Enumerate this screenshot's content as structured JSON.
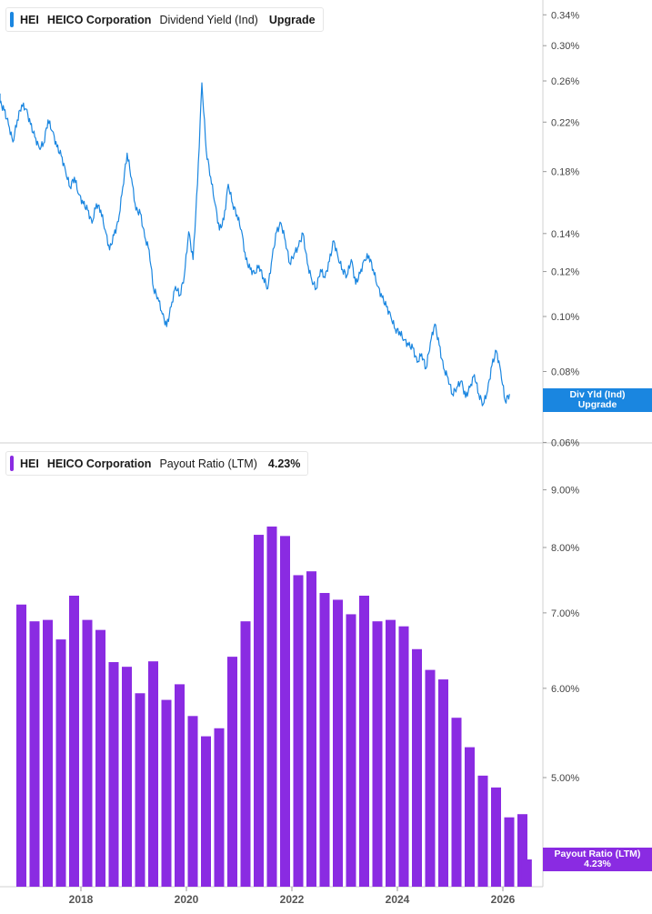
{
  "top_legend": {
    "ticker": "HEI",
    "company": "HEICO Corporation",
    "metric": "Dividend Yield (Ind)",
    "value": "Upgrade",
    "color": "#1a86e0"
  },
  "bottom_legend": {
    "ticker": "HEI",
    "company": "HEICO Corporation",
    "metric": "Payout Ratio (LTM)",
    "value": "4.23%",
    "color": "#8a2be2"
  },
  "top_flag": {
    "line1": "Div Yld (Ind)",
    "line2": "Upgrade",
    "color": "#1a86e0"
  },
  "bottom_flag": {
    "line1": "Payout Ratio (LTM)",
    "line2": "4.23%",
    "color": "#8a2be2"
  },
  "chart_data": [
    {
      "type": "line",
      "series": [
        {
          "name": "Dividend Yield (Ind)"
        }
      ],
      "yscale": "log",
      "y_ticks": [
        "0.34%",
        "0.30%",
        "0.26%",
        "0.22%",
        "0.18%",
        "0.14%",
        "0.12%",
        "0.10%",
        "0.08%",
        "0.06%"
      ],
      "y_tick_values": [
        0.34,
        0.3,
        0.26,
        0.22,
        0.18,
        0.14,
        0.12,
        0.1,
        0.08,
        0.06
      ],
      "points": [
        [
          "2016-08",
          0.247
        ],
        [
          "2016-09",
          0.238
        ],
        [
          "2016-10",
          0.231
        ],
        [
          "2016-11",
          0.218
        ],
        [
          "2016-12",
          0.203
        ],
        [
          "2017-01",
          0.222
        ],
        [
          "2017-02",
          0.236
        ],
        [
          "2017-03",
          0.232
        ],
        [
          "2017-04",
          0.218
        ],
        [
          "2017-05",
          0.207
        ],
        [
          "2017-06",
          0.198
        ],
        [
          "2017-07",
          0.202
        ],
        [
          "2017-08",
          0.222
        ],
        [
          "2017-09",
          0.212
        ],
        [
          "2017-10",
          0.199
        ],
        [
          "2017-11",
          0.192
        ],
        [
          "2017-12",
          0.18
        ],
        [
          "2018-01",
          0.169
        ],
        [
          "2018-02",
          0.176
        ],
        [
          "2018-03",
          0.164
        ],
        [
          "2018-04",
          0.158
        ],
        [
          "2018-05",
          0.154
        ],
        [
          "2018-06",
          0.146
        ],
        [
          "2018-07",
          0.158
        ],
        [
          "2018-08",
          0.154
        ],
        [
          "2018-09",
          0.142
        ],
        [
          "2018-10",
          0.131
        ],
        [
          "2018-11",
          0.139
        ],
        [
          "2018-12",
          0.147
        ],
        [
          "2019-01",
          0.169
        ],
        [
          "2019-02",
          0.194
        ],
        [
          "2019-03",
          0.175
        ],
        [
          "2019-04",
          0.154
        ],
        [
          "2019-05",
          0.152
        ],
        [
          "2019-06",
          0.138
        ],
        [
          "2019-07",
          0.131
        ],
        [
          "2019-08",
          0.112
        ],
        [
          "2019-09",
          0.108
        ],
        [
          "2019-10",
          0.101
        ],
        [
          "2019-11",
          0.096
        ],
        [
          "2019-12",
          0.104
        ],
        [
          "2020-01",
          0.113
        ],
        [
          "2020-02",
          0.109
        ],
        [
          "2020-03",
          0.118
        ],
        [
          "2020-04",
          0.141
        ],
        [
          "2020-05",
          0.126
        ],
        [
          "2020-06",
          0.171
        ],
        [
          "2020-07",
          0.258
        ],
        [
          "2020-08",
          0.196
        ],
        [
          "2020-09",
          0.176
        ],
        [
          "2020-10",
          0.158
        ],
        [
          "2020-11",
          0.142
        ],
        [
          "2020-12",
          0.148
        ],
        [
          "2021-01",
          0.171
        ],
        [
          "2021-02",
          0.158
        ],
        [
          "2021-03",
          0.151
        ],
        [
          "2021-04",
          0.142
        ],
        [
          "2021-05",
          0.126
        ],
        [
          "2021-06",
          0.121
        ],
        [
          "2021-07",
          0.119
        ],
        [
          "2021-08",
          0.123
        ],
        [
          "2021-09",
          0.117
        ],
        [
          "2021-10",
          0.112
        ],
        [
          "2021-11",
          0.127
        ],
        [
          "2021-12",
          0.141
        ],
        [
          "2022-01",
          0.146
        ],
        [
          "2022-02",
          0.136
        ],
        [
          "2022-03",
          0.124
        ],
        [
          "2022-04",
          0.129
        ],
        [
          "2022-05",
          0.133
        ],
        [
          "2022-06",
          0.14
        ],
        [
          "2022-07",
          0.124
        ],
        [
          "2022-08",
          0.116
        ],
        [
          "2022-09",
          0.112
        ],
        [
          "2022-10",
          0.121
        ],
        [
          "2022-11",
          0.117
        ],
        [
          "2022-12",
          0.125
        ],
        [
          "2023-01",
          0.136
        ],
        [
          "2023-02",
          0.127
        ],
        [
          "2023-03",
          0.121
        ],
        [
          "2023-04",
          0.118
        ],
        [
          "2023-05",
          0.126
        ],
        [
          "2023-06",
          0.114
        ],
        [
          "2023-07",
          0.119
        ],
        [
          "2023-08",
          0.126
        ],
        [
          "2023-09",
          0.128
        ],
        [
          "2023-10",
          0.121
        ],
        [
          "2023-11",
          0.113
        ],
        [
          "2023-12",
          0.108
        ],
        [
          "2024-01",
          0.104
        ],
        [
          "2024-02",
          0.1
        ],
        [
          "2024-03",
          0.095
        ],
        [
          "2024-04",
          0.094
        ],
        [
          "2024-05",
          0.091
        ],
        [
          "2024-06",
          0.089
        ],
        [
          "2024-07",
          0.088
        ],
        [
          "2024-08",
          0.083
        ],
        [
          "2024-09",
          0.086
        ],
        [
          "2024-10",
          0.081
        ],
        [
          "2024-11",
          0.09
        ],
        [
          "2024-12",
          0.097
        ],
        [
          "2025-01",
          0.089
        ],
        [
          "2025-02",
          0.081
        ],
        [
          "2025-03",
          0.078
        ],
        [
          "2025-04",
          0.073
        ],
        [
          "2025-05",
          0.075
        ],
        [
          "2025-06",
          0.077
        ],
        [
          "2025-07",
          0.072
        ],
        [
          "2025-08",
          0.075
        ],
        [
          "2025-09",
          0.079
        ],
        [
          "2025-10",
          0.073
        ],
        [
          "2025-11",
          0.07
        ],
        [
          "2025-12",
          0.074
        ],
        [
          "2026-01",
          0.082
        ],
        [
          "2026-02",
          0.087
        ],
        [
          "2026-03",
          0.08
        ],
        [
          "2026-04",
          0.071
        ],
        [
          "2026-05",
          0.073
        ]
      ]
    },
    {
      "type": "bar",
      "series": [
        {
          "name": "Payout Ratio (LTM)"
        }
      ],
      "yscale": "log",
      "y_ticks": [
        "9.00%",
        "8.00%",
        "7.00%",
        "6.00%",
        "5.00%"
      ],
      "y_tick_values": [
        9.0,
        8.0,
        7.0,
        6.0,
        5.0
      ],
      "bars": [
        [
          "2016-10",
          7.12
        ],
        [
          "2017-01",
          6.88
        ],
        [
          "2017-04",
          6.9
        ],
        [
          "2017-07",
          6.63
        ],
        [
          "2017-10",
          7.25
        ],
        [
          "2018-01",
          6.9
        ],
        [
          "2018-04",
          6.76
        ],
        [
          "2018-07",
          6.33
        ],
        [
          "2018-10",
          6.27
        ],
        [
          "2019-01",
          5.94
        ],
        [
          "2019-04",
          6.34
        ],
        [
          "2019-07",
          5.86
        ],
        [
          "2019-10",
          6.05
        ],
        [
          "2020-01",
          5.67
        ],
        [
          "2020-04",
          5.44
        ],
        [
          "2020-07",
          5.53
        ],
        [
          "2020-10",
          6.4
        ],
        [
          "2021-01",
          6.88
        ],
        [
          "2021-04",
          8.21
        ],
        [
          "2021-07",
          8.35
        ],
        [
          "2021-10",
          8.19
        ],
        [
          "2022-01",
          7.56
        ],
        [
          "2022-04",
          7.62
        ],
        [
          "2022-07",
          7.29
        ],
        [
          "2022-10",
          7.19
        ],
        [
          "2023-01",
          6.98
        ],
        [
          "2023-04",
          7.25
        ],
        [
          "2023-07",
          6.88
        ],
        [
          "2023-10",
          6.9
        ],
        [
          "2024-01",
          6.81
        ],
        [
          "2024-04",
          6.5
        ],
        [
          "2024-07",
          6.23
        ],
        [
          "2024-10",
          6.11
        ],
        [
          "2025-01",
          5.65
        ],
        [
          "2025-04",
          5.32
        ],
        [
          "2025-07",
          5.02
        ],
        [
          "2025-10",
          4.9
        ],
        [
          "2026-01",
          4.61
        ],
        [
          "2026-04",
          4.64
        ],
        [
          "2026-05",
          4.23
        ]
      ]
    }
  ],
  "x_axis": {
    "ticks": [
      "2018",
      "2020",
      "2022",
      "2024",
      "2026"
    ]
  }
}
